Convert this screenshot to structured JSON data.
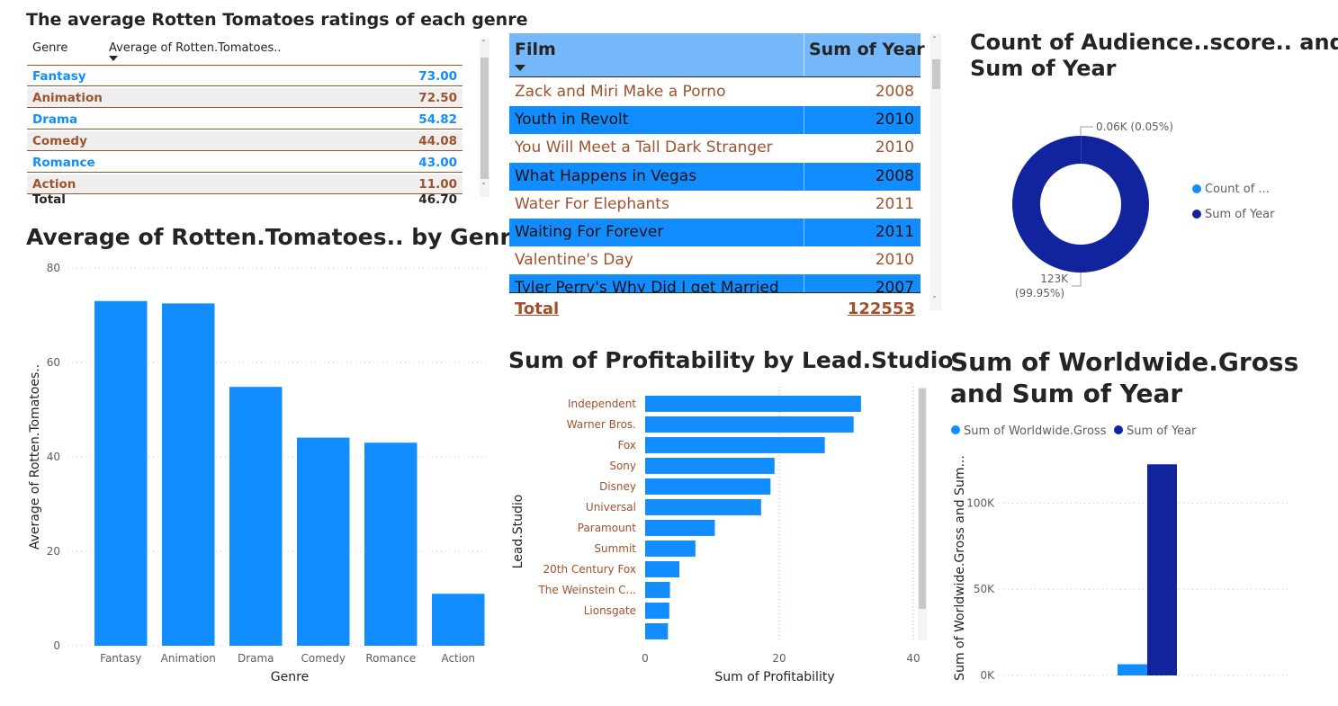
{
  "colors": {
    "blue": "#118dff",
    "navy": "#12239e",
    "brown": "#a0522d",
    "text": "#252423",
    "grey": "#605e5c"
  },
  "table1": {
    "title": "The average Rotten Tomatoes ratings of each genre",
    "col_genre": "Genre",
    "col_avg": "Average of Rotten.Tomatoes..",
    "rows": [
      {
        "genre": "Fantasy",
        "value": "73.00"
      },
      {
        "genre": "Animation",
        "value": "72.50"
      },
      {
        "genre": "Drama",
        "value": "54.82"
      },
      {
        "genre": "Comedy",
        "value": "44.08"
      },
      {
        "genre": "Romance",
        "value": "43.00"
      },
      {
        "genre": "Action",
        "value": "11.00"
      }
    ],
    "total_label": "Total",
    "total_value": "46.70"
  },
  "table2": {
    "col_film": "Film",
    "col_year": "Sum of Year",
    "rows": [
      {
        "film": "Zack and Miri Make a Porno",
        "year": "2008"
      },
      {
        "film": "Youth in Revolt",
        "year": "2010"
      },
      {
        "film": "You Will Meet a Tall Dark Stranger",
        "year": "2010"
      },
      {
        "film": "What Happens in Vegas",
        "year": "2008"
      },
      {
        "film": "Water For Elephants",
        "year": "2011"
      },
      {
        "film": "Waiting For Forever",
        "year": "2011"
      },
      {
        "film": "Valentine's Day",
        "year": "2010"
      },
      {
        "film": "Tyler Perry's Why Did I get Married",
        "year": "2007"
      }
    ],
    "total_label": "Total",
    "total_value": "122553"
  },
  "donut": {
    "title_line1": "Count of Audience..score.. and",
    "title_line2": "Sum of Year",
    "label_small": "0.06K (0.05%)",
    "label_large_1": "123K",
    "label_large_2": "(99.95%)",
    "legend": [
      "Count of ...",
      "Sum of Year"
    ]
  },
  "chart_data": [
    {
      "type": "bar",
      "title": "Average of Rotten.Tomatoes.. by Genre",
      "categories": [
        "Fantasy",
        "Animation",
        "Drama",
        "Comedy",
        "Romance",
        "Action"
      ],
      "values": [
        73.0,
        72.5,
        54.82,
        44.08,
        43.0,
        11.0
      ],
      "xlabel": "Genre",
      "ylabel": "Average of Rotten.Tomatoes..",
      "ylim": [
        0,
        80
      ],
      "yticks": [
        "0",
        "20",
        "40",
        "60",
        "80"
      ],
      "grid": true
    },
    {
      "type": "bar",
      "orientation": "horizontal",
      "title": "Sum of Profitability by Lead.Studio",
      "categories": [
        "Independent",
        "Warner Bros.",
        "Fox",
        "Sony",
        "Disney",
        "Universal",
        "Paramount",
        "Summit",
        "20th Century Fox",
        "The Weinstein C...",
        "Lionsgate",
        ""
      ],
      "values": [
        32.2,
        31.1,
        26.8,
        19.3,
        18.7,
        17.3,
        10.4,
        7.5,
        5.1,
        3.7,
        3.6,
        3.4
      ],
      "xlabel": "Sum of Profitability",
      "ylabel": "Lead.Studio",
      "xlim": [
        0,
        40
      ],
      "xticks": [
        "0",
        "20",
        "40"
      ],
      "grid": true
    },
    {
      "type": "pie",
      "title": "Count of Audience..score.. and Sum of Year",
      "labels": [
        "Count of ...",
        "Sum of Year"
      ],
      "values": [
        60,
        122553
      ],
      "donut": true
    },
    {
      "type": "bar",
      "title": "Sum of Worldwide.Gross and Sum of Year",
      "categories": [
        ""
      ],
      "series": [
        {
          "name": "Sum of Worldwide.Gross",
          "values": [
            6500
          ]
        },
        {
          "name": "Sum of Year",
          "values": [
            122553
          ]
        }
      ],
      "ylabel": "Sum of Worldwide.Gross and Sum...",
      "ylim": [
        0,
        130000
      ],
      "yticks": [
        "0K",
        "50K",
        "100K"
      ],
      "grid": true
    }
  ]
}
